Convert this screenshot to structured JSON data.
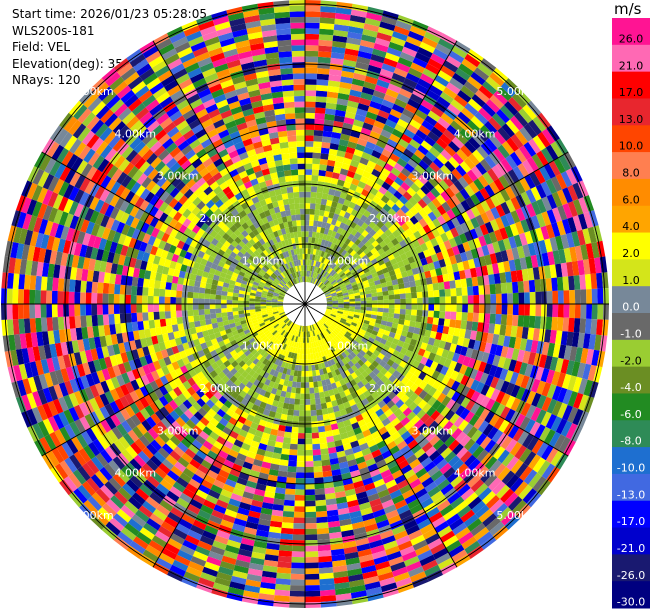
{
  "info": {
    "start_time": "Start time: 2026/01/23 05:28:05",
    "instrument": "WLS200s-181",
    "field": "Field: VEL",
    "elevation": "Elevation(deg): 35.00",
    "nrays": "NRays: 120"
  },
  "colorbar": {
    "unit": "m/s",
    "labels": [
      "26.0",
      "21.0",
      "17.0",
      "13.0",
      "10.0",
      "8.0",
      "6.0",
      "4.0",
      "2.0",
      "1.0",
      "0.0",
      "-1.0",
      "-2.0",
      "-4.0",
      "-6.0",
      "-8.0",
      "-10.0",
      "-13.0",
      "-17.0",
      "-21.0",
      "-26.0",
      "-30.0"
    ],
    "colors": [
      "#ff1493",
      "#ff69b4",
      "#ff0000",
      "#e8262e",
      "#ff4500",
      "#ff7f50",
      "#ff8c00",
      "#ffa500",
      "#ffff00",
      "#d4e51a",
      "#778899",
      "#696969",
      "#9acd32",
      "#6b8e23",
      "#228b22",
      "#2e8b57",
      "#1e6fd0",
      "#4169e1",
      "#0000ff",
      "#0000cd",
      "#191970",
      "#000080"
    ]
  },
  "ppi": {
    "range_rings": [
      "1.00km",
      "2.00km",
      "3.00km",
      "4.00km",
      "5.00km"
    ],
    "nrays": 120,
    "ngates": 50
  }
}
